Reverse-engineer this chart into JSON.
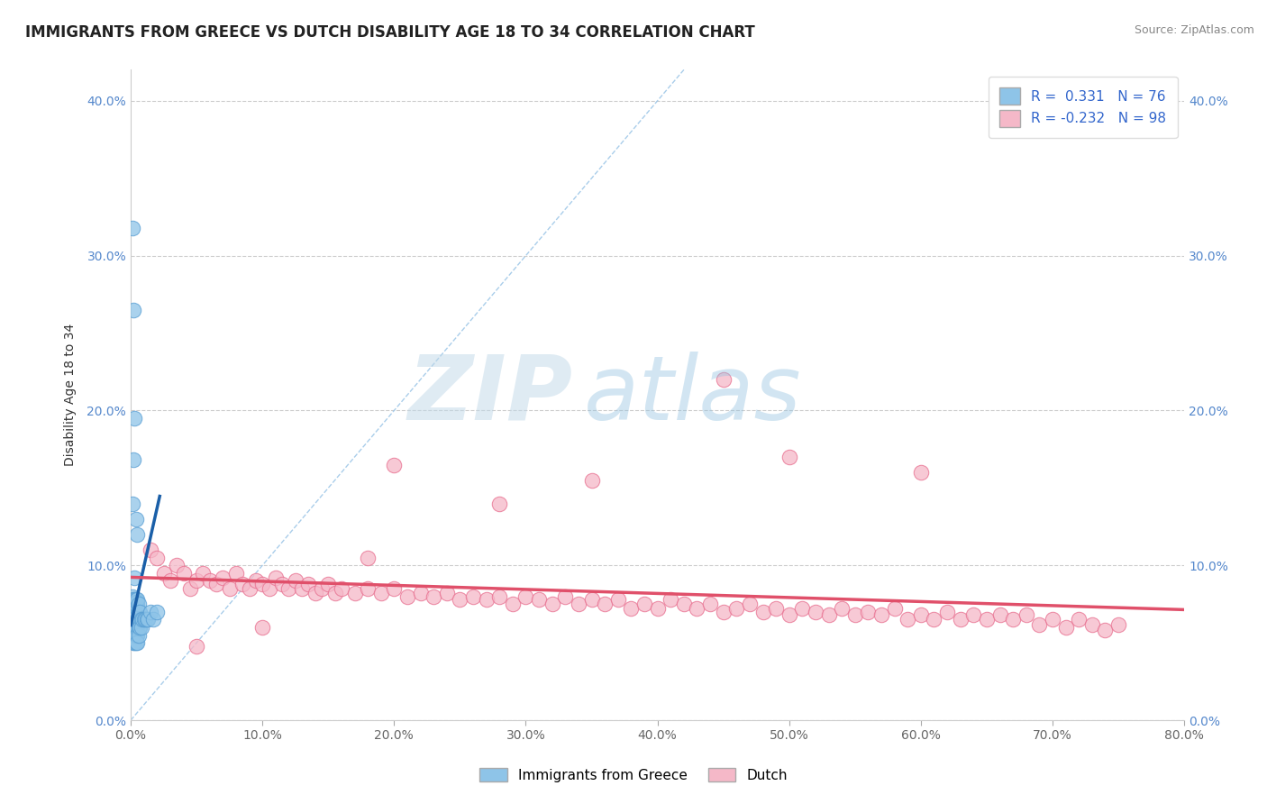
{
  "title": "IMMIGRANTS FROM GREECE VS DUTCH DISABILITY AGE 18 TO 34 CORRELATION CHART",
  "source": "Source: ZipAtlas.com",
  "ylabel": "Disability Age 18 to 34",
  "xlim": [
    0.0,
    0.8
  ],
  "ylim": [
    0.0,
    0.42
  ],
  "xticks": [
    0.0,
    0.1,
    0.2,
    0.3,
    0.4,
    0.5,
    0.6,
    0.7,
    0.8
  ],
  "xticklabels": [
    "0.0%",
    "10.0%",
    "20.0%",
    "30.0%",
    "40.0%",
    "50.0%",
    "60.0%",
    "70.0%",
    "80.0%"
  ],
  "yticks": [
    0.0,
    0.1,
    0.2,
    0.3,
    0.4
  ],
  "yticklabels": [
    "0.0%",
    "10.0%",
    "20.0%",
    "30.0%",
    "40.0%"
  ],
  "blue_R": 0.331,
  "blue_N": 76,
  "pink_R": -0.232,
  "pink_N": 98,
  "blue_color": "#8ec4e8",
  "blue_edge_color": "#5a9fd4",
  "pink_color": "#f5b8c8",
  "pink_edge_color": "#e87090",
  "blue_line_color": "#1a5fa8",
  "pink_line_color": "#e0506a",
  "ref_line_color": "#a0c8e8",
  "legend_label_blue": "Immigrants from Greece",
  "legend_label_pink": "Dutch",
  "watermark_zip": "ZIP",
  "watermark_atlas": "atlas",
  "title_fontsize": 12,
  "axis_label_fontsize": 10,
  "tick_fontsize": 10,
  "blue_scatter_x": [
    0.001,
    0.001,
    0.001,
    0.001,
    0.001,
    0.001,
    0.001,
    0.001,
    0.001,
    0.001,
    0.002,
    0.002,
    0.002,
    0.002,
    0.002,
    0.002,
    0.002,
    0.002,
    0.002,
    0.002,
    0.003,
    0.003,
    0.003,
    0.003,
    0.003,
    0.003,
    0.003,
    0.003,
    0.003,
    0.003,
    0.004,
    0.004,
    0.004,
    0.004,
    0.004,
    0.004,
    0.004,
    0.004,
    0.004,
    0.004,
    0.005,
    0.005,
    0.005,
    0.005,
    0.005,
    0.005,
    0.005,
    0.005,
    0.005,
    0.005,
    0.006,
    0.006,
    0.006,
    0.006,
    0.006,
    0.007,
    0.007,
    0.007,
    0.008,
    0.008,
    0.009,
    0.01,
    0.011,
    0.012,
    0.013,
    0.015,
    0.017,
    0.02,
    0.001,
    0.002,
    0.003,
    0.001,
    0.002,
    0.004,
    0.003,
    0.005
  ],
  "blue_scatter_y": [
    0.065,
    0.068,
    0.07,
    0.072,
    0.074,
    0.076,
    0.078,
    0.08,
    0.06,
    0.055,
    0.065,
    0.068,
    0.07,
    0.072,
    0.074,
    0.076,
    0.078,
    0.06,
    0.055,
    0.05,
    0.065,
    0.068,
    0.07,
    0.072,
    0.074,
    0.076,
    0.078,
    0.06,
    0.055,
    0.05,
    0.065,
    0.068,
    0.07,
    0.072,
    0.074,
    0.076,
    0.078,
    0.06,
    0.055,
    0.05,
    0.065,
    0.068,
    0.07,
    0.072,
    0.074,
    0.076,
    0.078,
    0.06,
    0.055,
    0.05,
    0.065,
    0.07,
    0.075,
    0.06,
    0.055,
    0.065,
    0.07,
    0.06,
    0.065,
    0.06,
    0.065,
    0.065,
    0.065,
    0.065,
    0.065,
    0.07,
    0.065,
    0.07,
    0.318,
    0.265,
    0.195,
    0.14,
    0.168,
    0.13,
    0.092,
    0.12
  ],
  "pink_scatter_x": [
    0.015,
    0.02,
    0.025,
    0.03,
    0.035,
    0.04,
    0.045,
    0.05,
    0.055,
    0.06,
    0.065,
    0.07,
    0.075,
    0.08,
    0.085,
    0.09,
    0.095,
    0.1,
    0.105,
    0.11,
    0.115,
    0.12,
    0.125,
    0.13,
    0.135,
    0.14,
    0.145,
    0.15,
    0.155,
    0.16,
    0.17,
    0.18,
    0.19,
    0.2,
    0.21,
    0.22,
    0.23,
    0.24,
    0.25,
    0.26,
    0.27,
    0.28,
    0.29,
    0.3,
    0.31,
    0.32,
    0.33,
    0.34,
    0.35,
    0.36,
    0.37,
    0.38,
    0.39,
    0.4,
    0.41,
    0.42,
    0.43,
    0.44,
    0.45,
    0.46,
    0.47,
    0.48,
    0.49,
    0.5,
    0.51,
    0.52,
    0.53,
    0.54,
    0.55,
    0.56,
    0.57,
    0.58,
    0.59,
    0.6,
    0.61,
    0.62,
    0.63,
    0.64,
    0.65,
    0.66,
    0.67,
    0.68,
    0.69,
    0.7,
    0.71,
    0.72,
    0.73,
    0.74,
    0.75,
    0.05,
    0.1,
    0.2,
    0.35,
    0.5,
    0.28,
    0.45,
    0.6,
    0.18
  ],
  "pink_scatter_y": [
    0.11,
    0.105,
    0.095,
    0.09,
    0.1,
    0.095,
    0.085,
    0.09,
    0.095,
    0.09,
    0.088,
    0.092,
    0.085,
    0.095,
    0.088,
    0.085,
    0.09,
    0.088,
    0.085,
    0.092,
    0.088,
    0.085,
    0.09,
    0.085,
    0.088,
    0.082,
    0.085,
    0.088,
    0.082,
    0.085,
    0.082,
    0.085,
    0.082,
    0.085,
    0.08,
    0.082,
    0.08,
    0.082,
    0.078,
    0.08,
    0.078,
    0.08,
    0.075,
    0.08,
    0.078,
    0.075,
    0.08,
    0.075,
    0.078,
    0.075,
    0.078,
    0.072,
    0.075,
    0.072,
    0.078,
    0.075,
    0.072,
    0.075,
    0.07,
    0.072,
    0.075,
    0.07,
    0.072,
    0.068,
    0.072,
    0.07,
    0.068,
    0.072,
    0.068,
    0.07,
    0.068,
    0.072,
    0.065,
    0.068,
    0.065,
    0.07,
    0.065,
    0.068,
    0.065,
    0.068,
    0.065,
    0.068,
    0.062,
    0.065,
    0.06,
    0.065,
    0.062,
    0.058,
    0.062,
    0.048,
    0.06,
    0.165,
    0.155,
    0.17,
    0.14,
    0.22,
    0.16,
    0.105
  ]
}
